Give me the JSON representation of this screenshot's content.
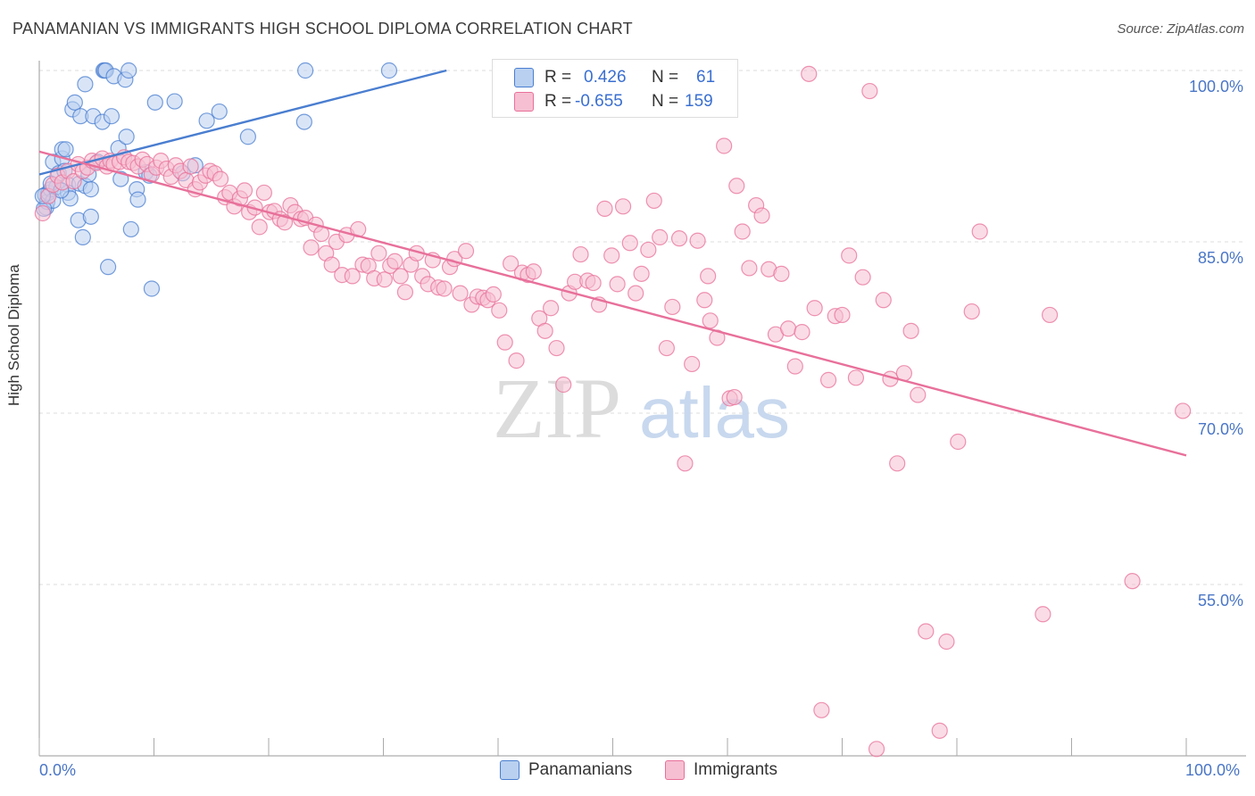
{
  "title": "PANAMANIAN VS IMMIGRANTS HIGH SCHOOL DIPLOMA CORRELATION CHART",
  "source": "Source: ZipAtlas.com",
  "watermark": {
    "zip": "ZIP",
    "atlas": "atlas"
  },
  "legend_top": {
    "r_label": "R =",
    "n_label": "N =",
    "rows": [
      {
        "r": "0.426",
        "n": "61"
      },
      {
        "r": "-0.655",
        "n": "159"
      }
    ]
  },
  "legend_bottom": [
    "Panamanians",
    "Immigrants"
  ],
  "x_ticks": [
    "0.0%",
    "100.0%"
  ],
  "colors": {
    "blue": "#4a7ed0",
    "blue_fill": "#b9d0f0",
    "pink": "#e8709a",
    "pink_fill": "#f6bfd2",
    "axis_text": "#4a76c6"
  },
  "chart_data": {
    "type": "scatter",
    "title": "PANAMANIAN VS IMMIGRANTS HIGH SCHOOL DIPLOMA CORRELATION CHART",
    "xlabel": "",
    "ylabel": "High School Diploma",
    "xlim": [
      0,
      100
    ],
    "ylim": [
      40,
      101.5
    ],
    "y_ticks": [
      55,
      70,
      85,
      100
    ],
    "y_tick_labels": [
      "55.0%",
      "70.0%",
      "85.0%",
      "100.0%"
    ],
    "grid": true,
    "legend_placement": "top-center",
    "series": [
      {
        "name": "Panamanians",
        "color": "#4a7ed0",
        "trend": {
          "x": [
            0,
            35.5
          ],
          "y": [
            90.9,
            100
          ]
        },
        "points": [
          [
            0.5,
            89.1
          ],
          [
            0.6,
            88.0
          ],
          [
            0.7,
            88.5
          ],
          [
            0.8,
            89.3
          ],
          [
            1,
            89.6
          ],
          [
            1.2,
            88.6
          ],
          [
            1.2,
            92.0
          ],
          [
            1.5,
            89.8
          ],
          [
            1.7,
            91.0
          ],
          [
            2,
            92.3
          ],
          [
            2,
            93.1
          ],
          [
            2.2,
            91.2
          ],
          [
            2.5,
            90.0
          ],
          [
            2.5,
            89.3
          ],
          [
            2.7,
            88.8
          ],
          [
            2.9,
            96.6
          ],
          [
            3.1,
            97.2
          ],
          [
            3.4,
            86.9
          ],
          [
            3.5,
            90.1
          ],
          [
            3.6,
            96.0
          ],
          [
            3.8,
            85.4
          ],
          [
            4.0,
            98.8
          ],
          [
            4.0,
            89.9
          ],
          [
            4.5,
            89.6
          ],
          [
            4.5,
            87.2
          ],
          [
            4.7,
            96.0
          ],
          [
            5.1,
            92.0
          ],
          [
            5.5,
            95.5
          ],
          [
            5.6,
            100.0
          ],
          [
            5.7,
            100.0
          ],
          [
            5.8,
            100.0
          ],
          [
            6.0,
            82.8
          ],
          [
            6.3,
            96.0
          ],
          [
            6.5,
            99.5
          ],
          [
            6.9,
            93.2
          ],
          [
            7.1,
            90.5
          ],
          [
            7.5,
            99.2
          ],
          [
            7.6,
            94.2
          ],
          [
            7.8,
            100.0
          ],
          [
            8.0,
            86.1
          ],
          [
            8.5,
            89.6
          ],
          [
            8.6,
            88.7
          ],
          [
            9.3,
            91.1
          ],
          [
            9.6,
            90.8
          ],
          [
            9.8,
            80.9
          ],
          [
            10.1,
            97.2
          ],
          [
            11.8,
            97.3
          ],
          [
            12.5,
            91.0
          ],
          [
            13.6,
            91.7
          ],
          [
            14.6,
            95.6
          ],
          [
            15.7,
            96.4
          ],
          [
            18.2,
            94.2
          ],
          [
            23.1,
            95.5
          ],
          [
            23.2,
            100.0
          ],
          [
            30.5,
            100.0
          ],
          [
            0.4,
            87.9
          ],
          [
            1.0,
            90.1
          ],
          [
            1.9,
            89.5
          ],
          [
            2.3,
            93.1
          ],
          [
            4.3,
            90.9
          ],
          [
            0.3,
            89.0
          ]
        ]
      },
      {
        "name": "Immigrants",
        "color": "#e8709a",
        "trend": {
          "x": [
            0,
            100
          ],
          "y": [
            92.9,
            66.3
          ]
        },
        "points": [
          [
            0.3,
            87.5
          ],
          [
            0.8,
            89.0
          ],
          [
            1.2,
            90.0
          ],
          [
            1.6,
            90.8
          ],
          [
            2.0,
            90.2
          ],
          [
            2.5,
            91.2
          ],
          [
            3.0,
            90.3
          ],
          [
            3.4,
            91.8
          ],
          [
            3.8,
            91.2
          ],
          [
            4.2,
            91.5
          ],
          [
            4.6,
            92.1
          ],
          [
            5.0,
            91.9
          ],
          [
            5.5,
            92.3
          ],
          [
            5.9,
            91.6
          ],
          [
            6.2,
            92.1
          ],
          [
            6.5,
            91.8
          ],
          [
            7.0,
            92.0
          ],
          [
            7.4,
            92.4
          ],
          [
            7.8,
            92.0
          ],
          [
            8.2,
            91.9
          ],
          [
            8.6,
            91.6
          ],
          [
            9.0,
            92.2
          ],
          [
            9.4,
            91.8
          ],
          [
            9.8,
            90.9
          ],
          [
            10.2,
            91.5
          ],
          [
            10.6,
            92.1
          ],
          [
            11.1,
            91.4
          ],
          [
            11.5,
            90.7
          ],
          [
            11.9,
            91.7
          ],
          [
            12.3,
            91.2
          ],
          [
            12.8,
            90.4
          ],
          [
            13.2,
            91.6
          ],
          [
            13.6,
            89.6
          ],
          [
            14.0,
            90.2
          ],
          [
            14.5,
            90.8
          ],
          [
            14.9,
            91.2
          ],
          [
            15.3,
            91.0
          ],
          [
            15.8,
            90.5
          ],
          [
            16.2,
            88.9
          ],
          [
            16.6,
            89.3
          ],
          [
            17.0,
            88.1
          ],
          [
            17.5,
            88.8
          ],
          [
            17.9,
            89.5
          ],
          [
            18.3,
            87.6
          ],
          [
            18.8,
            88.0
          ],
          [
            19.2,
            86.3
          ],
          [
            19.6,
            89.3
          ],
          [
            20.1,
            87.6
          ],
          [
            20.5,
            87.7
          ],
          [
            21.0,
            87.0
          ],
          [
            21.4,
            86.7
          ],
          [
            21.9,
            88.2
          ],
          [
            22.3,
            87.6
          ],
          [
            22.8,
            87.0
          ],
          [
            23.2,
            87.1
          ],
          [
            23.7,
            84.5
          ],
          [
            24.1,
            86.5
          ],
          [
            24.6,
            85.7
          ],
          [
            25.0,
            84.0
          ],
          [
            25.5,
            83.0
          ],
          [
            25.9,
            85.0
          ],
          [
            26.4,
            82.1
          ],
          [
            26.8,
            85.6
          ],
          [
            27.3,
            82.0
          ],
          [
            27.8,
            86.1
          ],
          [
            28.2,
            83.0
          ],
          [
            28.7,
            82.9
          ],
          [
            29.2,
            81.8
          ],
          [
            29.6,
            84.0
          ],
          [
            30.1,
            81.7
          ],
          [
            30.6,
            82.9
          ],
          [
            31.0,
            83.3
          ],
          [
            31.5,
            82.0
          ],
          [
            31.9,
            80.6
          ],
          [
            32.4,
            83.0
          ],
          [
            32.9,
            84.0
          ],
          [
            33.4,
            82.0
          ],
          [
            33.9,
            81.3
          ],
          [
            34.3,
            83.4
          ],
          [
            34.8,
            81.0
          ],
          [
            35.3,
            80.9
          ],
          [
            35.8,
            82.8
          ],
          [
            36.2,
            83.5
          ],
          [
            36.7,
            80.5
          ],
          [
            37.2,
            84.2
          ],
          [
            37.7,
            79.5
          ],
          [
            38.2,
            80.2
          ],
          [
            38.7,
            80.1
          ],
          [
            39.1,
            79.9
          ],
          [
            39.6,
            80.4
          ],
          [
            40.1,
            79.0
          ],
          [
            40.6,
            76.2
          ],
          [
            41.1,
            83.1
          ],
          [
            41.6,
            74.6
          ],
          [
            42.1,
            82.3
          ],
          [
            42.6,
            82.1
          ],
          [
            43.1,
            82.4
          ],
          [
            43.6,
            78.3
          ],
          [
            44.1,
            77.2
          ],
          [
            44.6,
            79.2
          ],
          [
            45.1,
            75.7
          ],
          [
            45.7,
            72.5
          ],
          [
            46.2,
            80.5
          ],
          [
            46.7,
            81.5
          ],
          [
            47.2,
            83.9
          ],
          [
            47.8,
            81.6
          ],
          [
            48.3,
            81.4
          ],
          [
            48.8,
            79.5
          ],
          [
            49.3,
            87.9
          ],
          [
            49.9,
            83.8
          ],
          [
            50.4,
            81.3
          ],
          [
            50.9,
            88.1
          ],
          [
            51.5,
            84.9
          ],
          [
            52.0,
            80.5
          ],
          [
            52.5,
            82.2
          ],
          [
            53.1,
            84.3
          ],
          [
            53.6,
            88.6
          ],
          [
            54.1,
            85.4
          ],
          [
            54.7,
            75.7
          ],
          [
            55.2,
            79.3
          ],
          [
            55.8,
            85.3
          ],
          [
            56.3,
            65.6
          ],
          [
            56.9,
            74.3
          ],
          [
            57.4,
            85.1
          ],
          [
            58.0,
            79.9
          ],
          [
            58.5,
            78.1
          ],
          [
            59.1,
            76.6
          ],
          [
            59.7,
            93.4
          ],
          [
            60.2,
            71.3
          ],
          [
            60.8,
            89.9
          ],
          [
            61.3,
            85.9
          ],
          [
            61.9,
            82.7
          ],
          [
            62.5,
            88.2
          ],
          [
            63.0,
            87.3
          ],
          [
            63.6,
            82.6
          ],
          [
            64.2,
            76.9
          ],
          [
            64.7,
            82.2
          ],
          [
            65.3,
            77.4
          ],
          [
            65.9,
            74.1
          ],
          [
            66.5,
            77.1
          ],
          [
            67.1,
            99.7
          ],
          [
            67.6,
            79.2
          ],
          [
            68.2,
            44.0
          ],
          [
            68.8,
            72.9
          ],
          [
            69.4,
            78.5
          ],
          [
            70.0,
            78.6
          ],
          [
            70.6,
            83.8
          ],
          [
            71.2,
            73.1
          ],
          [
            71.8,
            81.9
          ],
          [
            72.4,
            98.2
          ],
          [
            73.0,
            40.6
          ],
          [
            73.6,
            79.9
          ],
          [
            74.2,
            73.0
          ],
          [
            74.8,
            65.6
          ],
          [
            75.4,
            73.5
          ],
          [
            76.0,
            77.2
          ],
          [
            76.6,
            71.6
          ],
          [
            77.3,
            50.9
          ],
          [
            78.5,
            42.2
          ],
          [
            79.1,
            50.0
          ],
          [
            80.1,
            67.5
          ],
          [
            81.3,
            78.9
          ],
          [
            82.0,
            85.9
          ],
          [
            87.5,
            52.4
          ],
          [
            88.1,
            78.6
          ],
          [
            95.3,
            55.3
          ],
          [
            99.7,
            70.2
          ],
          [
            60.6,
            71.4
          ],
          [
            58.3,
            82.0
          ]
        ]
      }
    ]
  }
}
